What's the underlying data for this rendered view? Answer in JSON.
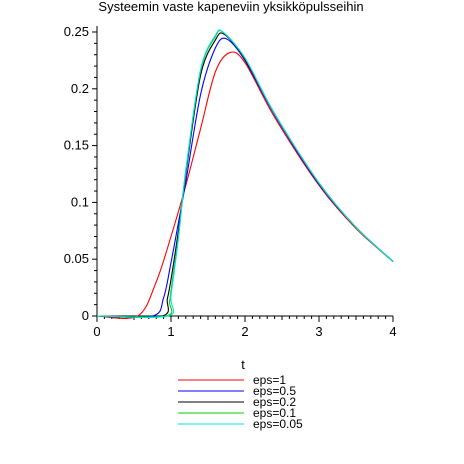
{
  "chart_data": {
    "type": "line",
    "title": "Systeemin vaste kapeneviin yksikköpulsseihin",
    "xlabel": "t",
    "ylabel": "",
    "xlim": [
      0,
      4
    ],
    "ylim": [
      0,
      0.25
    ],
    "x_ticks": [
      {
        "value": 0,
        "label": "0"
      },
      {
        "value": 1,
        "label": "1"
      },
      {
        "value": 2,
        "label": "2"
      },
      {
        "value": 3,
        "label": "3"
      },
      {
        "value": 4,
        "label": "4"
      }
    ],
    "y_ticks": [
      {
        "value": 0,
        "label": "0"
      },
      {
        "value": 0.05,
        "label": "0.05"
      },
      {
        "value": 0.1,
        "label": "0.1"
      },
      {
        "value": 0.15,
        "label": "0.15"
      },
      {
        "value": 0.2,
        "label": "0.2"
      },
      {
        "value": 0.25,
        "label": "0.25"
      }
    ],
    "grid": false,
    "legend_position": "bottom",
    "series": [
      {
        "name": "eps=1",
        "color": "#ff0000",
        "x": [
          0,
          0.55,
          0.8,
          1.0,
          1.2,
          1.4,
          1.6,
          1.8,
          2.0,
          2.4,
          3.0,
          3.5,
          4.0
        ],
        "y": [
          0,
          0,
          0.03,
          0.07,
          0.115,
          0.165,
          0.215,
          0.232,
          0.223,
          0.175,
          0.115,
          0.077,
          0.048
        ]
      },
      {
        "name": "eps=0.5",
        "color": "#0000ff",
        "x": [
          0,
          0.75,
          0.9,
          1.0,
          1.1,
          1.2,
          1.4,
          1.6,
          1.75,
          2.0,
          2.4,
          3.0,
          3.5,
          4.0
        ],
        "y": [
          0,
          0,
          0.016,
          0.047,
          0.082,
          0.118,
          0.195,
          0.236,
          0.244,
          0.225,
          0.177,
          0.116,
          0.078,
          0.048
        ]
      },
      {
        "name": "eps=0.2",
        "color": "#000000",
        "x": [
          0,
          0.88,
          0.95,
          1.0,
          1.1,
          1.2,
          1.4,
          1.6,
          1.72,
          2.0,
          2.4,
          3.0,
          3.5,
          4.0
        ],
        "y": [
          0,
          0,
          0.015,
          0.032,
          0.075,
          0.125,
          0.212,
          0.243,
          0.248,
          0.226,
          0.178,
          0.117,
          0.078,
          0.048
        ]
      },
      {
        "name": "eps=0.1",
        "color": "#00cc00",
        "x": [
          0,
          0.93,
          0.98,
          1.0,
          1.1,
          1.2,
          1.4,
          1.6,
          1.7,
          2.0,
          2.4,
          3.0,
          3.5,
          4.0
        ],
        "y": [
          0,
          0,
          0.012,
          0.022,
          0.07,
          0.128,
          0.216,
          0.246,
          0.25,
          0.227,
          0.178,
          0.117,
          0.078,
          0.048
        ]
      },
      {
        "name": "eps=0.05",
        "color": "#00e0e0",
        "x": [
          0,
          0.96,
          1.0,
          1.1,
          1.2,
          1.4,
          1.6,
          1.7,
          2.0,
          2.4,
          3.0,
          3.5,
          4.0
        ],
        "y": [
          0,
          0,
          0.018,
          0.068,
          0.128,
          0.217,
          0.247,
          0.25,
          0.227,
          0.178,
          0.117,
          0.078,
          0.048
        ]
      }
    ]
  }
}
